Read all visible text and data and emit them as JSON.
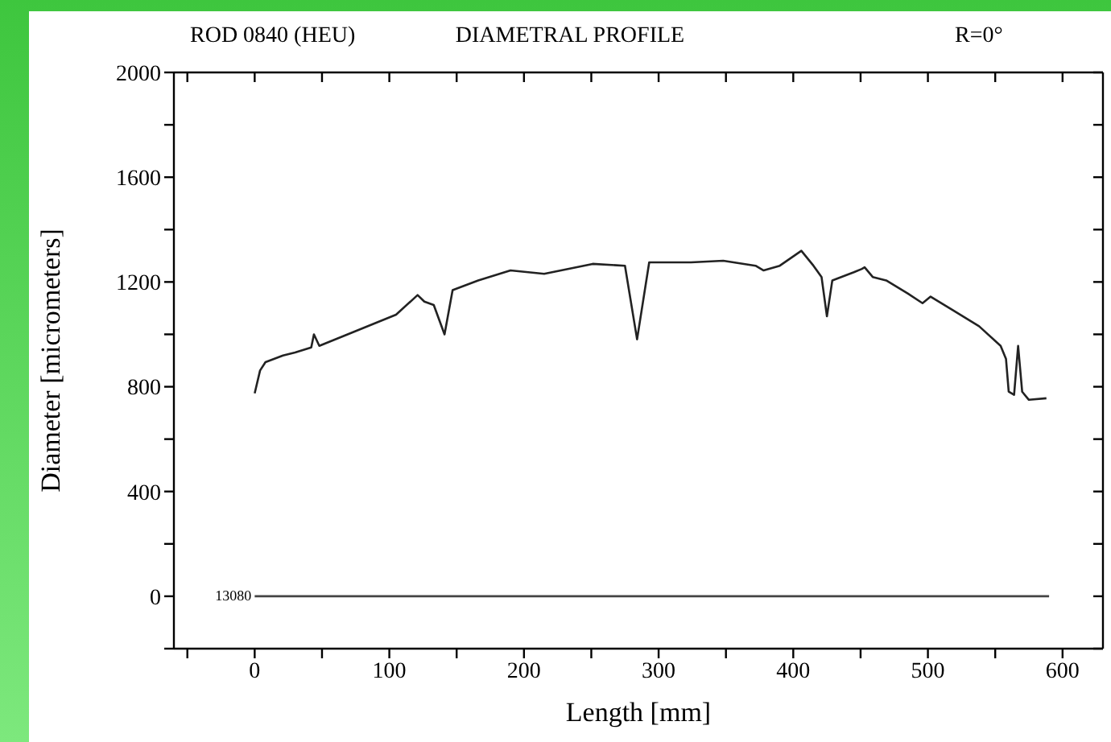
{
  "chart_data": {
    "type": "line",
    "title": "DIAMETRAL  PROFILE",
    "xlabel": "Length [mm]",
    "ylabel": "Diameter [micrometers]",
    "annotations": [
      "ROD 0840 (HEU)",
      "R=0°",
      {
        "text": "13080",
        "x": 0,
        "y": 0
      }
    ],
    "series": [
      {
        "color": "#222222",
        "x": [
          0,
          4,
          8,
          21,
          30,
          42,
          44,
          48,
          69,
          105,
          121,
          126,
          133,
          141,
          147,
          166,
          190,
          215,
          251,
          275,
          284,
          293,
          324,
          348,
          372,
          378,
          390,
          406,
          415,
          421,
          425,
          429,
          445,
          451,
          453,
          459,
          469,
          485,
          496,
          502,
          518,
          538,
          554,
          558,
          560,
          564,
          567,
          570,
          575,
          588
        ],
        "values": [
          775,
          862,
          894,
          919,
          931,
          950,
          1000,
          956,
          1000,
          1075,
          1150,
          1125,
          1112,
          1000,
          1169,
          1206,
          1244,
          1231,
          1269,
          1262,
          981,
          1275,
          1275,
          1281,
          1262,
          1244,
          1262,
          1319,
          1262,
          1219,
          1069,
          1206,
          1237,
          1250,
          1256,
          1219,
          1206,
          1156,
          1119,
          1144,
          1094,
          1031,
          956,
          906,
          781,
          769,
          956,
          781,
          750,
          756
        ]
      },
      {
        "color": "#444444",
        "x": [
          0,
          590
        ],
        "values": [
          0,
          0
        ]
      }
    ],
    "xlim": [
      -60,
      630
    ],
    "xticks": [
      {
        "value": -50,
        "label": null
      },
      0,
      {
        "value": 50,
        "label": null
      },
      100,
      {
        "value": 150,
        "label": null
      },
      200,
      {
        "value": 250,
        "label": null
      },
      300,
      {
        "value": 350,
        "label": null
      },
      400,
      {
        "value": 450,
        "label": null
      },
      500,
      {
        "value": 550,
        "label": null
      },
      600
    ],
    "ylim": [
      -200,
      2000
    ],
    "yticks": [
      {
        "value": -200,
        "label": null
      },
      0,
      {
        "value": 200,
        "label": null
      },
      400,
      {
        "value": 600,
        "label": null
      },
      800,
      {
        "value": 1000,
        "label": null
      },
      1200,
      {
        "value": 1400,
        "label": null
      },
      1600,
      {
        "value": 1800,
        "label": null
      },
      2000
    ],
    "legend": false,
    "marker": "none",
    "line_style": "solid"
  }
}
